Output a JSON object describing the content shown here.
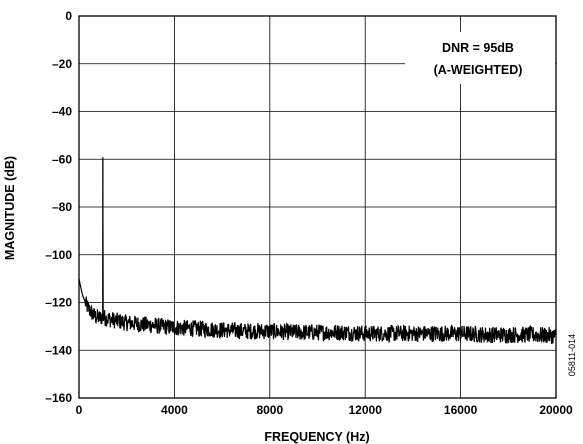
{
  "chart_data": {
    "type": "line",
    "title": "",
    "xlabel": "FREQUENCY (Hz)",
    "ylabel": "MAGNITUDE (dB)",
    "xlim": [
      0,
      20000
    ],
    "ylim": [
      -160,
      0
    ],
    "x_ticks": [
      "0",
      "4000",
      "8000",
      "12000",
      "16000",
      "20000"
    ],
    "y_ticks": [
      "0",
      "–20",
      "–40",
      "–60",
      "–80",
      "–100",
      "–120",
      "–140",
      "–160"
    ],
    "grid": true,
    "annotation": [
      "DNR = 95dB",
      "(A-WEIGHTED)"
    ],
    "figure_id": "05811-014",
    "series": [
      {
        "x": [
          0,
          60,
          150,
          300,
          500,
          700,
          900,
          990,
          1000,
          1010,
          1100,
          1500,
          2000,
          3000,
          4000,
          5000,
          6000,
          7000,
          8000,
          9000,
          10000,
          11000,
          12000,
          13000,
          14000,
          15000,
          16000,
          17000,
          18000,
          19000,
          20000
        ],
        "values": [
          -110,
          -113,
          -117,
          -121,
          -124,
          -126,
          -126.5,
          -126,
          -60.5,
          -126,
          -126.5,
          -127.5,
          -128.5,
          -129.5,
          -130.5,
          -131,
          -131.5,
          -132,
          -132,
          -132.5,
          -132.5,
          -132.5,
          -133,
          -133,
          -133,
          -133,
          -133,
          -133.5,
          -133.5,
          -133.5,
          -134
        ],
        "noise_db": 3.5,
        "color": "#000000"
      }
    ]
  }
}
